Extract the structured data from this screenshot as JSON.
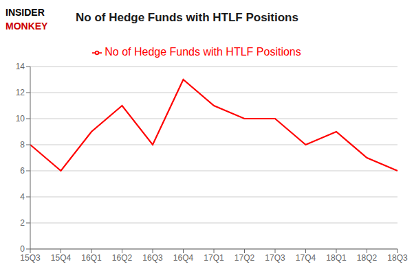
{
  "chart_data": {
    "type": "line",
    "title": "No of Hedge Funds with HTLF Positions",
    "annotations": [
      {
        "text": "INSIDER",
        "color": "#000000"
      },
      {
        "text": "MONKEY",
        "color": "#cc0000"
      }
    ],
    "categories": [
      "15Q3",
      "15Q4",
      "16Q1",
      "16Q2",
      "16Q3",
      "16Q4",
      "17Q1",
      "17Q2",
      "17Q3",
      "17Q4",
      "18Q1",
      "18Q2",
      "18Q3"
    ],
    "series": [
      {
        "name": "No of Hedge Funds with HTLF Positions",
        "color": "#ff0000",
        "values": [
          8,
          6,
          9,
          11,
          8,
          13,
          11,
          10,
          10,
          8,
          9,
          7,
          6
        ]
      }
    ],
    "ylim": [
      0,
      14
    ],
    "yticks": [
      0,
      2,
      4,
      6,
      8,
      10,
      12,
      14
    ],
    "grid": true,
    "legend": "top"
  }
}
